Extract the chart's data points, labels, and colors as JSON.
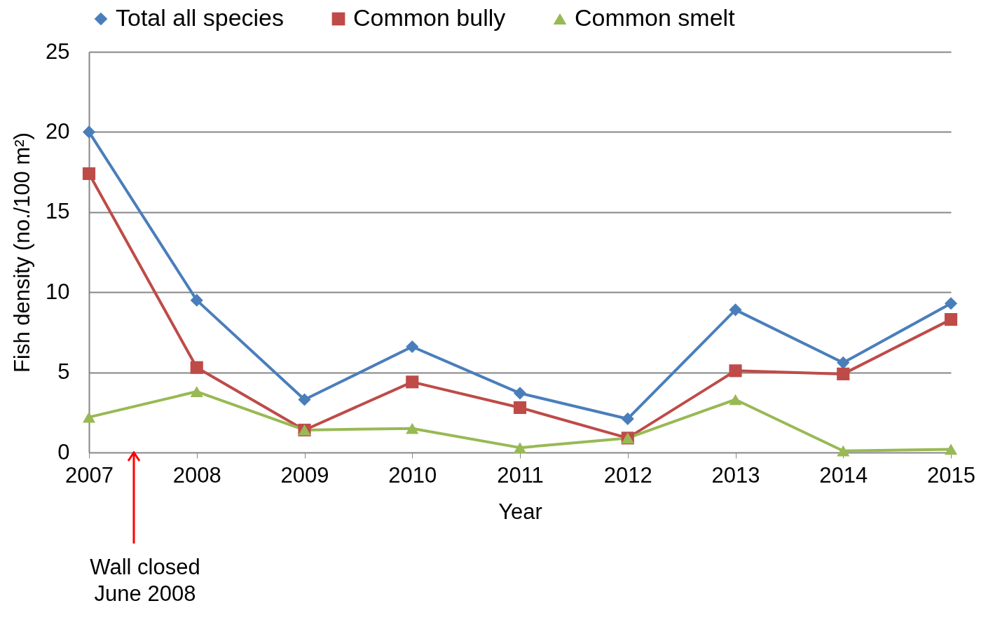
{
  "chart_data": {
    "type": "line",
    "xlabel": "Year",
    "ylabel": "Fish density (no./100 m²)",
    "x": [
      2007,
      2008,
      2009,
      2010,
      2011,
      2012,
      2013,
      2014,
      2015
    ],
    "xlim": [
      2007,
      2015
    ],
    "xticks": [
      2007,
      2008,
      2009,
      2010,
      2011,
      2012,
      2013,
      2014,
      2015
    ],
    "ylim": [
      0,
      25
    ],
    "yticks": [
      0,
      5,
      10,
      15,
      20,
      25
    ],
    "grid": "y",
    "legend": "top",
    "line_style": "solid",
    "series": [
      {
        "name": "Total all species",
        "color": "#4a7ebb",
        "marker": "diamond",
        "values": [
          20.0,
          9.5,
          3.3,
          6.6,
          3.7,
          2.1,
          8.9,
          5.6,
          9.3
        ]
      },
      {
        "name": "Common bully",
        "color": "#be4b48",
        "marker": "square",
        "values": [
          17.4,
          5.3,
          1.4,
          4.4,
          2.8,
          0.9,
          5.1,
          4.9,
          8.3
        ]
      },
      {
        "name": "Common smelt",
        "color": "#98b954",
        "marker": "triangle",
        "values": [
          2.2,
          3.8,
          1.4,
          1.5,
          0.3,
          0.9,
          3.3,
          0.1,
          0.2
        ]
      }
    ],
    "annotations": [
      "Wall closed\nJune 2008"
    ]
  }
}
